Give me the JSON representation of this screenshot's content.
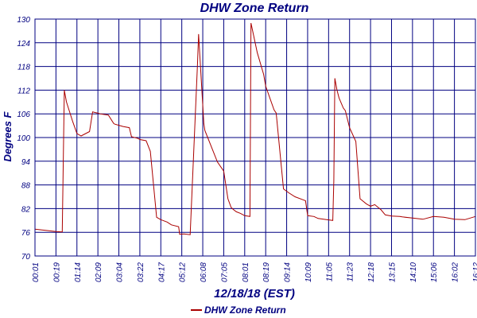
{
  "chart_data": {
    "type": "line",
    "title": "DHW Zone Return",
    "xlabel": "12/18/18 (EST)",
    "ylabel": "Degrees F",
    "ylim": [
      70,
      130
    ],
    "yticks": [
      "130",
      "124",
      "118",
      "112",
      "106",
      "100",
      "94",
      "88",
      "82",
      "76",
      "70"
    ],
    "xticks": [
      "00:01",
      "00:19",
      "01:14",
      "02:09",
      "03:04",
      "03:22",
      "04:17",
      "05:12",
      "06:08",
      "07:05",
      "08:01",
      "08:19",
      "09:14",
      "10:09",
      "11:05",
      "11:23",
      "12:18",
      "13:15",
      "14:10",
      "15:06",
      "16:02",
      "16:12"
    ],
    "grid": true,
    "legend_position": "bottom",
    "colors": {
      "series": "#aa0000",
      "grid": "#000080",
      "text": "#000080"
    },
    "series": [
      {
        "name": "DHW Zone Return",
        "x": [
          0,
          0.5,
          1,
          1.3,
          1.4,
          1.5,
          1.8,
          2.0,
          2.2,
          2.6,
          2.75,
          2.9,
          3.0,
          3.1,
          3.5,
          3.75,
          3.8,
          4.0,
          4.2,
          4.5,
          4.6,
          4.9,
          5.0,
          5.3,
          5.5,
          5.8,
          6.0,
          6.3,
          6.5,
          6.85,
          6.9,
          7.1,
          7.4,
          7.75,
          7.8,
          8.05,
          8.1,
          8.5,
          8.7,
          9.0,
          9.2,
          9.35,
          9.45,
          9.6,
          9.8,
          10.0,
          10.25,
          10.3,
          10.6,
          10.9,
          11.0,
          11.4,
          11.5,
          11.85,
          12.1,
          12.4,
          12.9,
          13.0,
          13.3,
          13.5,
          13.9,
          14.2,
          14.25,
          14.3,
          14.4,
          14.5,
          14.7,
          14.8,
          15.0,
          15.3,
          15.5,
          15.8,
          16.0,
          16.2,
          16.5,
          16.7,
          17.0,
          17.4,
          17.5,
          18.0,
          18.5,
          19.0,
          19.5,
          20.0,
          20.5,
          21.0
        ],
        "y": [
          76.8,
          76.5,
          76.2,
          76.1,
          112,
          109,
          104,
          101,
          100.4,
          101.5,
          106.5,
          106.3,
          106.2,
          106,
          105.7,
          103.6,
          103.4,
          103.1,
          102.8,
          102.5,
          100.2,
          99.8,
          99.5,
          99.2,
          96.5,
          79.8,
          79.2,
          78.6,
          77.9,
          77.4,
          75.5,
          75.6,
          75.4,
          119,
          126.2,
          103.5,
          101.8,
          96.5,
          93.8,
          91.5,
          84.5,
          82.3,
          81.8,
          81.2,
          80.8,
          80.2,
          80.0,
          129.0,
          121.5,
          116.0,
          113.0,
          107.0,
          106.2,
          87.0,
          86.0,
          85.0,
          84.0,
          80.2,
          80.0,
          79.5,
          79.2,
          79.0,
          89.0,
          115.0,
          112.0,
          110.0,
          107.5,
          106.8,
          102.5,
          99.0,
          84.5,
          83.2,
          82.6,
          83.0,
          81.7,
          80.4,
          80.1,
          80.0,
          79.9,
          79.6,
          79.3,
          80.0,
          79.8,
          79.3,
          79.2,
          80.0
        ]
      }
    ]
  }
}
